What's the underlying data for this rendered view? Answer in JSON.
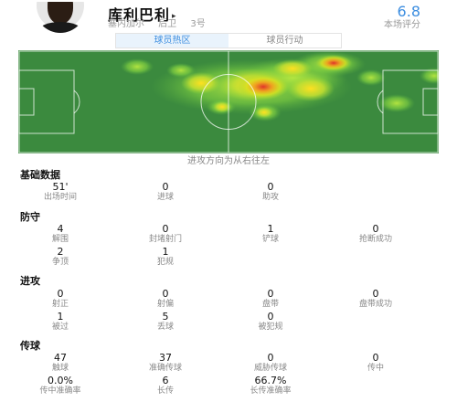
{
  "player": {
    "name": "库利巴利",
    "flag_glyph": "▸",
    "team": "塞内加尔",
    "position": "后卫",
    "number": "3号",
    "rating": "6.8",
    "rating_label": "本场评分"
  },
  "tabs": [
    {
      "label": "球员热区",
      "active": true
    },
    {
      "label": "球员行动",
      "active": false
    }
  ],
  "heatmap": {
    "pitch_color": "#3b8a3e",
    "direction_label": "进攻方向为从右往左"
  },
  "sections": {
    "basic": {
      "title": "基础数据",
      "stats": [
        {
          "value": "51'",
          "label": "出场时间"
        },
        {
          "value": "0",
          "label": "进球"
        },
        {
          "value": "0",
          "label": "助攻"
        }
      ]
    },
    "defense": {
      "title": "防守",
      "stats": [
        {
          "value": "4",
          "label": "解围"
        },
        {
          "value": "0",
          "label": "封堵射门"
        },
        {
          "value": "1",
          "label": "铲球"
        },
        {
          "value": "0",
          "label": "抢断成功"
        },
        {
          "value": "2",
          "label": "争顶"
        },
        {
          "value": "1",
          "label": "犯规"
        }
      ]
    },
    "attack": {
      "title": "进攻",
      "stats": [
        {
          "value": "0",
          "label": "射正"
        },
        {
          "value": "0",
          "label": "射偏"
        },
        {
          "value": "0",
          "label": "盘带"
        },
        {
          "value": "0",
          "label": "盘带成功"
        },
        {
          "value": "1",
          "label": "被过"
        },
        {
          "value": "5",
          "label": "丢球"
        },
        {
          "value": "0",
          "label": "被犯规"
        }
      ]
    },
    "passing": {
      "title": "传球",
      "stats": [
        {
          "value": "47",
          "label": "触球"
        },
        {
          "value": "37",
          "label": "准确传球"
        },
        {
          "value": "0",
          "label": "威胁传球"
        },
        {
          "value": "0",
          "label": "传中"
        },
        {
          "value": "0.0%",
          "label": "传中准确率"
        },
        {
          "value": "6",
          "label": "长传"
        },
        {
          "value": "66.7%",
          "label": "长传准确率"
        }
      ]
    }
  }
}
